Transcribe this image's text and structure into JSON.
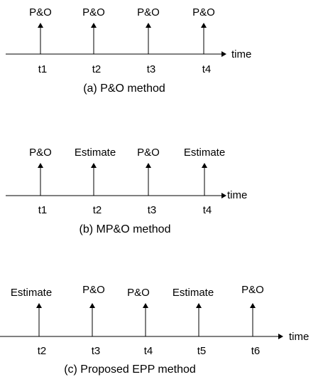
{
  "panels": [
    {
      "caption": "(a) P&O method",
      "axis_label": "time",
      "events": [
        {
          "top": "P&O",
          "bottom": "t1"
        },
        {
          "top": "P&O",
          "bottom": "t2"
        },
        {
          "top": "P&O",
          "bottom": "t3"
        },
        {
          "top": "P&O",
          "bottom": "t4"
        }
      ]
    },
    {
      "caption": "(b) MP&O method",
      "axis_label": "time",
      "events": [
        {
          "top": "P&O",
          "bottom": "t1"
        },
        {
          "top": "Estimate",
          "bottom": "t2"
        },
        {
          "top": "P&O",
          "bottom": "t3"
        },
        {
          "top": "Estimate",
          "bottom": "t4"
        }
      ]
    },
    {
      "caption": "(c) Proposed EPP method",
      "axis_label": "time",
      "events": [
        {
          "top": "Estimate",
          "bottom": "t2"
        },
        {
          "top": "P&O",
          "bottom": "t3"
        },
        {
          "top": "P&O",
          "bottom": "t4"
        },
        {
          "top": "Estimate",
          "bottom": "t5"
        },
        {
          "top": "P&O",
          "bottom": "t6"
        }
      ]
    }
  ]
}
